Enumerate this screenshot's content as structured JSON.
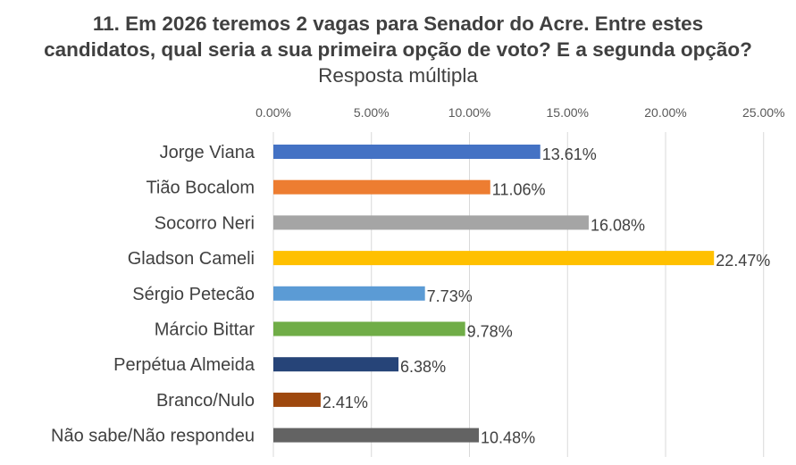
{
  "chart_data": {
    "type": "bar",
    "orientation": "horizontal",
    "title_bold": "11. Em 2026 teremos 2 vagas para Senador do Acre. Entre estes candidatos, qual seria a sua primeira opção de voto? E a segunda opção?",
    "title_normal": "Resposta múltipla",
    "categories": [
      "Jorge Viana",
      "Tião Bocalom",
      "Socorro Neri",
      "Gladson Cameli",
      "Sérgio Petecão",
      "Márcio Bittar",
      "Perpétua Almeida",
      "Branco/Nulo",
      "Não sabe/Não respondeu"
    ],
    "values": [
      13.61,
      11.06,
      16.08,
      22.47,
      7.73,
      9.78,
      6.38,
      2.41,
      10.48
    ],
    "value_labels": [
      "13.61%",
      "11.06%",
      "16.08%",
      "22.47%",
      "7.73%",
      "9.78%",
      "6.38%",
      "2.41%",
      "10.48%"
    ],
    "colors": [
      "#4472C4",
      "#ED7D31",
      "#A5A5A5",
      "#FFC000",
      "#5B9BD5",
      "#70AD47",
      "#264478",
      "#9E480E",
      "#636363"
    ],
    "xticks": [
      0,
      5,
      10,
      15,
      20,
      25
    ],
    "xtick_labels": [
      "0.00%",
      "5.00%",
      "10.00%",
      "15.00%",
      "20.00%",
      "25.00%"
    ],
    "xlim": [
      0,
      25
    ],
    "x_axis_position": "top",
    "grid": true,
    "legend": false
  }
}
